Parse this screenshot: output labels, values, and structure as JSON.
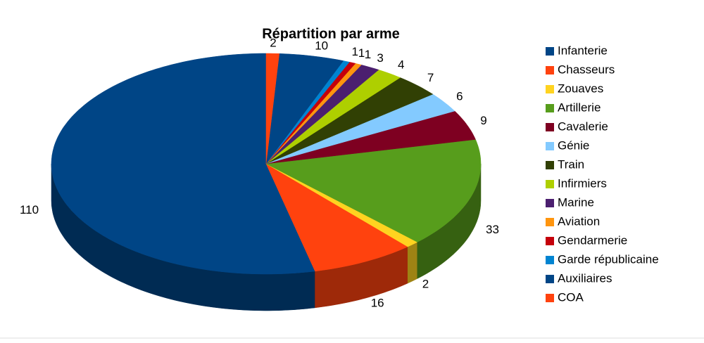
{
  "chart_data": {
    "type": "pie3d",
    "title": "Répartition par arme",
    "categories": [
      "Infanterie",
      "Chasseurs",
      "Zouaves",
      "Artillerie",
      "Cavalerie",
      "Génie",
      "Train",
      "Infirmiers",
      "Marine",
      "Aviation",
      "Gendarmerie",
      "Garde républicaine",
      "Auxiliaires",
      "COA"
    ],
    "values": [
      110,
      16,
      2,
      33,
      9,
      6,
      7,
      4,
      3,
      1,
      1,
      1,
      10,
      2
    ],
    "colors": [
      "#004586",
      "#ff420e",
      "#ffd320",
      "#579d1c",
      "#7e0021",
      "#83caff",
      "#314004",
      "#aecf00",
      "#4b1f6f",
      "#ff950e",
      "#c5000b",
      "#0084d1",
      "#004586",
      "#ff420e"
    ],
    "legend": "right"
  }
}
